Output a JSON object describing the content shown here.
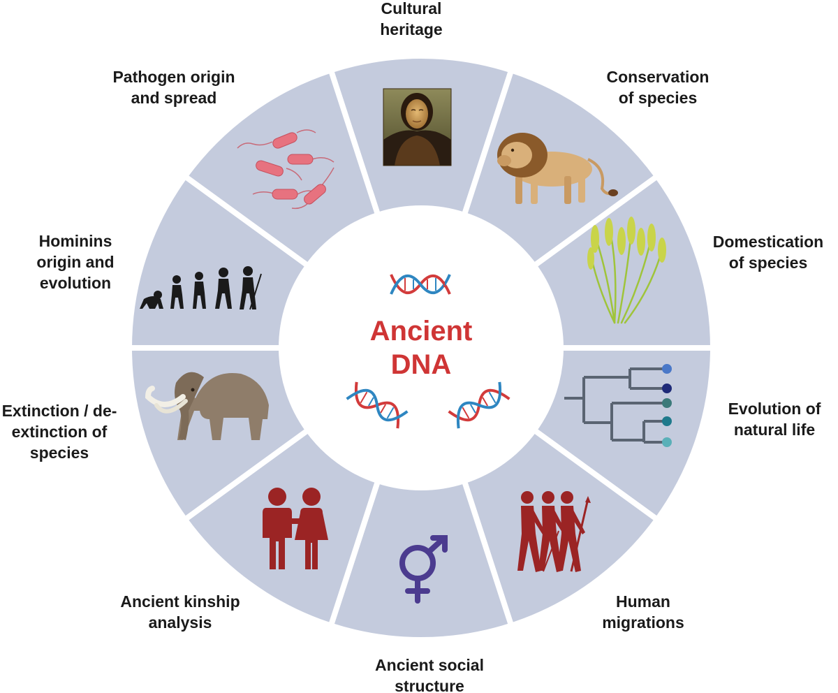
{
  "center": {
    "title": "Ancient\nDNA"
  },
  "segments": [
    {
      "label": "Cultural\nheritage",
      "icon": "mona-lisa-painting-icon"
    },
    {
      "label": "Conservation\nof species",
      "icon": "lion-icon"
    },
    {
      "label": "Domestication\nof species",
      "icon": "wheat-icon"
    },
    {
      "label": "Evolution of\nnatural life",
      "icon": "phylogenetic-tree-icon"
    },
    {
      "label": "Human\nmigrations",
      "icon": "walking-people-icon"
    },
    {
      "label": "Ancient social\nstructure",
      "icon": "gender-symbol-icon"
    },
    {
      "label": "Ancient kinship\nanalysis",
      "icon": "couple-icon"
    },
    {
      "label": "Extinction / de-\nextinction of\nspecies",
      "icon": "mammoth-icon"
    },
    {
      "label": "Hominins\norigin and\nevolution",
      "icon": "human-evolution-icon"
    },
    {
      "label": "Pathogen origin\nand spread",
      "icon": "bacteria-icon"
    }
  ],
  "colors": {
    "segment_fill": "#c4cbdd",
    "title": "#cf3535",
    "dna_red": "#d23b3b",
    "dna_blue": "#2e86c1",
    "figures_red": "#9b2424",
    "gender_purple": "#4b3b8f",
    "tree_line": "#5a6472"
  }
}
